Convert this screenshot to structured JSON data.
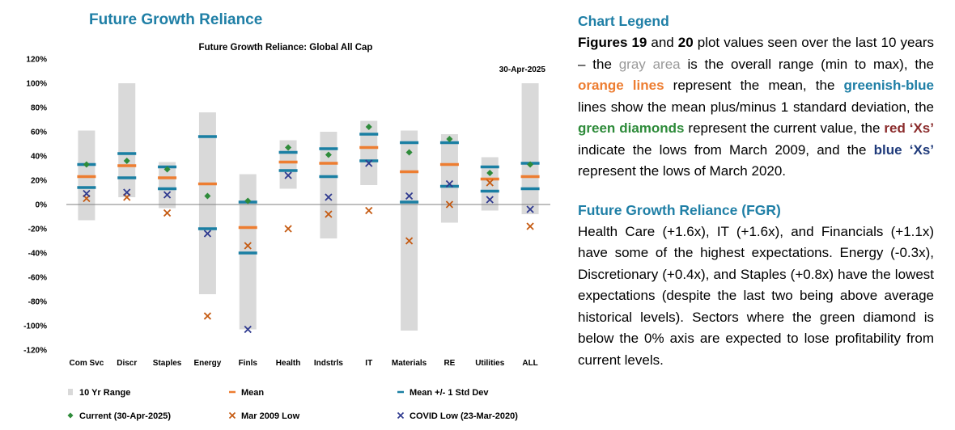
{
  "left_title": "Future Growth Reliance",
  "chart_data": {
    "type": "range",
    "title": "Future Growth Reliance: Global All Cap",
    "date_label": "30-Apr-2025",
    "ylim": [
      -120,
      120
    ],
    "yticks": [
      -120,
      -100,
      -80,
      -60,
      -40,
      -20,
      0,
      20,
      40,
      60,
      80,
      100,
      120
    ],
    "ytick_labels": [
      "-120%",
      "-100%",
      "-80%",
      "-60%",
      "-40%",
      "-20%",
      "0%",
      "20%",
      "40%",
      "60%",
      "80%",
      "100%",
      "120%"
    ],
    "categories": [
      "Com Svc",
      "Discr",
      "Staples",
      "Energy",
      "Finls",
      "Health",
      "Indstrls",
      "IT",
      "Materials",
      "RE",
      "Utilities",
      "ALL"
    ],
    "range_min": [
      -13,
      6,
      -3,
      -74,
      -103,
      13,
      -28,
      16,
      -104,
      -15,
      -5,
      -8
    ],
    "range_max": [
      61,
      100,
      35,
      76,
      25,
      53,
      60,
      69,
      61,
      58,
      39,
      100
    ],
    "mean": [
      23,
      32,
      22,
      17,
      -19,
      35,
      34,
      47,
      27,
      33,
      21,
      23
    ],
    "mean_plus_1sd": [
      33,
      42,
      31,
      56,
      2,
      43,
      46,
      58,
      51,
      51,
      31,
      34
    ],
    "mean_minus_1sd": [
      14,
      22,
      13,
      -20,
      -40,
      28,
      23,
      36,
      2,
      15,
      11,
      13
    ],
    "current": [
      33,
      36,
      29,
      7,
      3,
      47,
      41,
      64,
      43,
      54,
      26,
      33
    ],
    "mar2009_low": [
      5,
      6,
      -7,
      -92,
      -34,
      -20,
      -8,
      -5,
      -30,
      0,
      18,
      -18
    ],
    "covid_low": [
      9,
      10,
      8,
      -24,
      -103,
      24,
      6,
      34,
      7,
      17,
      4,
      -4
    ],
    "legend": [
      {
        "label": "10 Yr Range",
        "color": "#d9d9d9"
      },
      {
        "label": "Mean",
        "color": "#ed7d31"
      },
      {
        "label": "Mean +/- 1 Std Dev",
        "color": "#1a7fa3"
      },
      {
        "label": "Current (30-Apr-2025)",
        "color": "#2e8b3a"
      },
      {
        "label": "Mar 2009 Low",
        "color": "#c55a11"
      },
      {
        "label": "COVID Low (23-Mar-2020)",
        "color": "#2f3a8f"
      }
    ],
    "grid": false
  },
  "right": {
    "legend_heading": "Chart Legend",
    "legend_text": {
      "p1a": "Figures ",
      "p1b": "19",
      "p1c": " and ",
      "p1d": "20",
      "p1e": " plot values seen over the last 10 years – the ",
      "gray_area": "gray area",
      "p2": " is the overall range (min to max), the ",
      "orange_lines": "orange lines",
      "p3": " represent the mean, the ",
      "greenish_blue": "greenish-blue",
      "p4": " lines show the mean plus/minus 1 standard deviation, the ",
      "green_diamonds": "green diamonds",
      "p5": " represent the current value, the ",
      "red_xs": "red ‘Xs’",
      "p6": " indicate the lows from March 2009, and the ",
      "blue_xs": "blue ‘Xs’",
      "p7": " represent the lows of March 2020."
    },
    "fgr_heading": "Future Growth Reliance (FGR)",
    "fgr_text": "Health Care (+1.6x), IT (+1.6x), and Financials (+1.1x) have some of the highest expectations. Energy (-0.3x), Discretionary (+0.4x), and Staples (+0.8x) have the lowest expectations (despite the last two being above average historical levels). Sectors where the green diamond is below the 0% axis are expected to lose profitability from current levels."
  }
}
